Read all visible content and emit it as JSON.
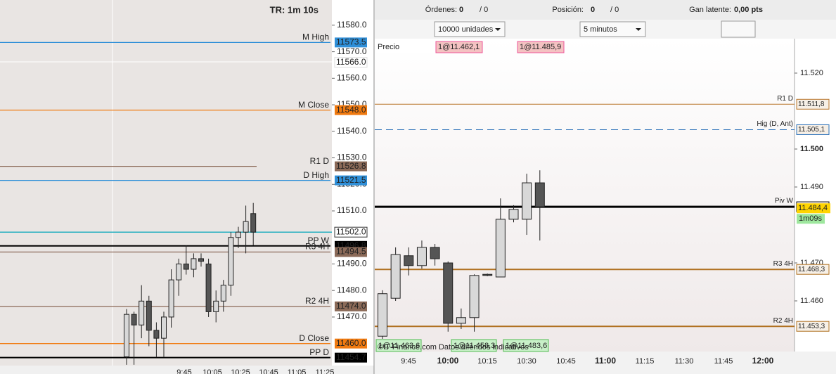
{
  "toolbar": {
    "orders_label": "Órdenes:",
    "orders": "0",
    "orders_total": "/ 0",
    "position_label": "Posición:",
    "position": "0",
    "position_total": "/ 0",
    "pnl_label": "Gan latente:",
    "pnl": "0,00 pts",
    "quantity": "10000 unidades",
    "timeframe": "5 minutos"
  },
  "left_chart": {
    "title": "TR: 1m 10s",
    "ylim": [
      11451.7,
      11589.5
    ],
    "yticks": [
      {
        "value": 11580,
        "label": "11580.0"
      },
      {
        "value": 11570,
        "label": "11570.0"
      },
      {
        "value": 11560,
        "label": "11560.0"
      },
      {
        "value": 11550,
        "label": "11550.0"
      },
      {
        "value": 11540,
        "label": "11540.0"
      },
      {
        "value": 11530,
        "label": "11530.0"
      },
      {
        "value": 11520,
        "label": "11520.0"
      },
      {
        "value": 11510,
        "label": "11510.0"
      },
      {
        "value": 11490,
        "label": "11490.0"
      },
      {
        "value": 11480,
        "label": "11480.0"
      },
      {
        "value": 11470,
        "label": "11470.0"
      }
    ],
    "levels": [
      {
        "name": "M High",
        "value": 11573.5,
        "label": "11573.5",
        "color": "#2f8fd8"
      },
      {
        "name": "M Close",
        "value": 11548.0,
        "label": "11548.0",
        "color": "#f07a10"
      },
      {
        "name": "R1 D",
        "value": 11526.8,
        "label": "11526.8",
        "color": "#8b6a58"
      },
      {
        "name": "D High",
        "value": 11521.5,
        "label": "11521.5",
        "color": "#2f8fd8"
      },
      {
        "name": "PP W",
        "value": 11496.8,
        "label": "11496.8",
        "color": "#000000"
      },
      {
        "name": "R3 4H",
        "value": 11494.5,
        "label": "11494.5",
        "color": "#8b6a58"
      },
      {
        "name": "R2 4H",
        "value": 11474.0,
        "label": "11474.0",
        "color": "#8b6a58"
      },
      {
        "name": "D Close",
        "value": 11460.0,
        "label": "11460.0",
        "color": "#f07a10"
      },
      {
        "name": "PP D",
        "value": 11454.7,
        "label": "11454.7",
        "color": "#000000"
      }
    ],
    "price_labels": [
      {
        "value": 11566.0,
        "label": "11566.0"
      },
      {
        "value": 11502.0,
        "label": "11502.0"
      }
    ],
    "candles": [
      {
        "open": 11455,
        "high": 11473,
        "low": 11452,
        "close": 11471
      },
      {
        "open": 11471,
        "high": 11472,
        "low": 11452,
        "close": 11467
      },
      {
        "open": 11467,
        "high": 11482,
        "low": 11462,
        "close": 11476
      },
      {
        "open": 11476,
        "high": 11478,
        "low": 11459,
        "close": 11465
      },
      {
        "open": 11465,
        "high": 11468,
        "low": 11455,
        "close": 11462
      },
      {
        "open": 11462,
        "high": 11472,
        "low": 11455,
        "close": 11470
      },
      {
        "open": 11470,
        "high": 11488,
        "low": 11466,
        "close": 11484
      },
      {
        "open": 11484,
        "high": 11492,
        "low": 11478,
        "close": 11490
      },
      {
        "open": 11490,
        "high": 11497,
        "low": 11486,
        "close": 11488
      },
      {
        "open": 11488,
        "high": 11494,
        "low": 11485,
        "close": 11492
      },
      {
        "open": 11492,
        "high": 11494,
        "low": 11489,
        "close": 11491
      },
      {
        "open": 11490,
        "high": 11492,
        "low": 11470,
        "close": 11472
      },
      {
        "open": 11472,
        "high": 11480,
        "low": 11468,
        "close": 11476
      },
      {
        "open": 11476,
        "high": 11484,
        "low": 11472,
        "close": 11482
      },
      {
        "open": 11482,
        "high": 11502,
        "low": 11478,
        "close": 11500
      },
      {
        "open": 11500,
        "high": 11504,
        "low": 11496,
        "close": 11502
      },
      {
        "open": 11502,
        "high": 11512,
        "low": 11494,
        "close": 11506
      },
      {
        "open": 11509,
        "high": 11513,
        "low": 11497,
        "close": 11502
      }
    ],
    "xticks": [
      "9:45",
      "10:05",
      "10:25",
      "10:45",
      "11:05",
      "11:25"
    ]
  },
  "right_chart": {
    "price_label": "Precio",
    "ylim": [
      11.44667,
      11.52907
    ],
    "yticks": [
      {
        "value": 11.46,
        "label": "11.460"
      },
      {
        "value": 11.47,
        "label": "11.470"
      },
      {
        "value": 11.49,
        "label": "11.490"
      },
      {
        "value": 11.5,
        "label": "11.500"
      },
      {
        "value": 11.52,
        "label": "11.520"
      }
    ],
    "levels": [
      {
        "name": "R1 D",
        "value": 11.5118,
        "label": "11.511,8",
        "color": "#b8742a",
        "dashed": false
      },
      {
        "name": "Hig (D, Ant)",
        "value": 11.5051,
        "label": "11.505,1",
        "color": "#2a70b8",
        "dashed": true
      },
      {
        "name": "Piv W",
        "value": 11.4848,
        "label": "11.484,8",
        "color": "#000000",
        "dashed": false
      },
      {
        "name": "R3 4H",
        "value": 11.4683,
        "label": "11.468,3",
        "color": "#b07020",
        "dashed": false
      },
      {
        "name": "R2 4H",
        "value": 11.4533,
        "label": "11.453,3",
        "color": "#b07020",
        "dashed": false
      }
    ],
    "current_price": {
      "value": 11.4844,
      "label": "11.484,4"
    },
    "timer": "1m09s",
    "orders_top": [
      "1@11.462,1",
      "1@11.485,9"
    ],
    "orders_bottom": [
      "1@11.463,6",
      "1@11.458,3",
      "1@11.483,6"
    ],
    "source": "©IT-Finance.com  Datos diferidos indicativos",
    "candles": [
      {
        "open": 11.4507,
        "high": 11.4628,
        "low": 11.45,
        "close": 11.4619
      },
      {
        "open": 11.4607,
        "high": 11.4741,
        "low": 11.46,
        "close": 11.4722
      },
      {
        "open": 11.4719,
        "high": 11.4741,
        "low": 11.4667,
        "close": 11.4693
      },
      {
        "open": 11.4693,
        "high": 11.4759,
        "low": 11.4685,
        "close": 11.4741
      },
      {
        "open": 11.4741,
        "high": 11.475,
        "low": 11.4693,
        "close": 11.4711
      },
      {
        "open": 11.47,
        "high": 11.4704,
        "low": 11.4519,
        "close": 11.4541
      },
      {
        "open": 11.4541,
        "high": 11.458,
        "low": 11.4526,
        "close": 11.4556
      },
      {
        "open": 11.4556,
        "high": 11.467,
        "low": 11.4519,
        "close": 11.4667
      },
      {
        "open": 11.467,
        "high": 11.4672,
        "low": 11.4665,
        "close": 11.4667
      },
      {
        "open": 11.4663,
        "high": 11.487,
        "low": 11.4663,
        "close": 11.4815
      },
      {
        "open": 11.4815,
        "high": 11.4852,
        "low": 11.4807,
        "close": 11.4841
      },
      {
        "open": 11.4815,
        "high": 11.4935,
        "low": 11.4774,
        "close": 11.4911
      },
      {
        "open": 11.4911,
        "high": 11.4944,
        "low": 11.4759,
        "close": 11.4848
      }
    ],
    "xticks": [
      "9:45",
      "10:00",
      "10:15",
      "10:30",
      "10:45",
      "11:00",
      "11:15",
      "11:30",
      "11:45",
      "12:00"
    ]
  }
}
